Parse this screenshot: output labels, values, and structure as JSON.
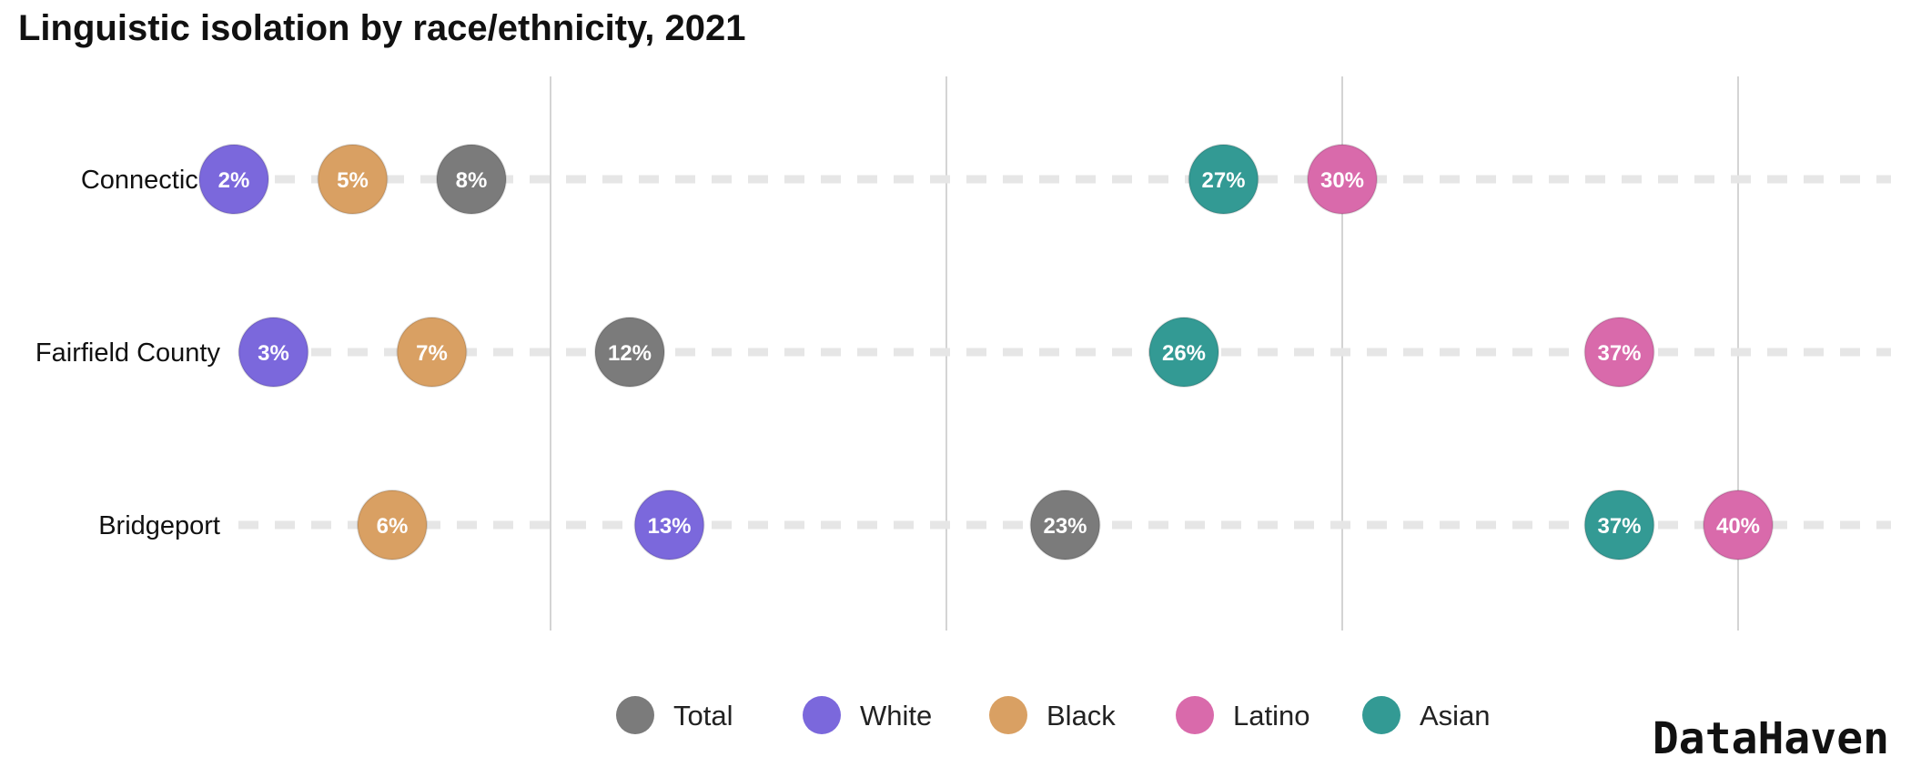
{
  "chart_data": {
    "type": "scatter",
    "title": "Linguistic isolation by race/ethnicity, 2021",
    "categories": [
      "Connecticut",
      "Fairfield County",
      "Bridgeport"
    ],
    "xlim": [
      0,
      42
    ],
    "gridlines_x": [
      10,
      20,
      30,
      40
    ],
    "value_suffix": "%",
    "legend_position": "bottom",
    "series": [
      {
        "name": "Total",
        "color": "#7b7b7b",
        "values": [
          8,
          12,
          23
        ]
      },
      {
        "name": "White",
        "color": "#7b68dc",
        "values": [
          2,
          3,
          13
        ]
      },
      {
        "name": "Black",
        "color": "#d9a063",
        "values": [
          5,
          7,
          6
        ]
      },
      {
        "name": "Latino",
        "color": "#d96aab",
        "values": [
          30,
          37,
          40
        ]
      },
      {
        "name": "Asian",
        "color": "#339a94",
        "values": [
          27,
          26,
          37
        ]
      }
    ]
  },
  "brand": "DataHaven"
}
